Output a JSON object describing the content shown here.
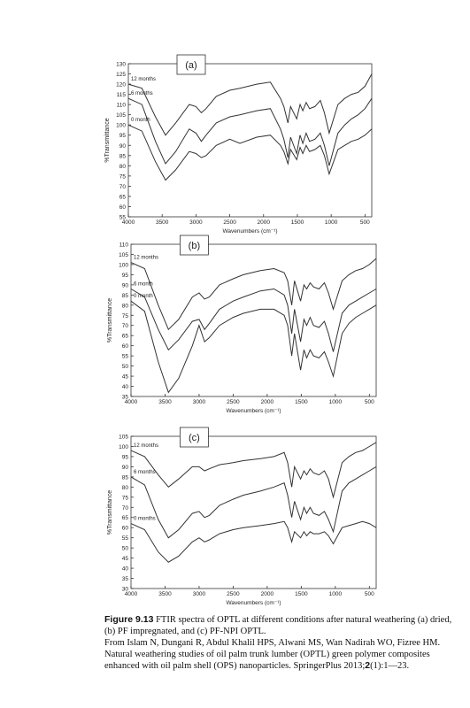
{
  "chart_data": [
    {
      "type": "line",
      "panel_label": "(a)",
      "ylabel": "%Transmittance",
      "xlabel": "Wavenumbers (cm⁻¹)",
      "xlim": [
        4000,
        400
      ],
      "xticks": [
        4000,
        3500,
        3000,
        2500,
        2000,
        1500,
        1000,
        500
      ],
      "ylim": [
        55,
        130
      ],
      "yticks": [
        55,
        60,
        65,
        70,
        75,
        80,
        85,
        90,
        95,
        100,
        105,
        110,
        115,
        120,
        125,
        130
      ],
      "x": [
        4000,
        3800,
        3600,
        3450,
        3300,
        3100,
        3000,
        2920,
        2850,
        2700,
        2500,
        2350,
        2100,
        1900,
        1750,
        1700,
        1640,
        1600,
        1510,
        1460,
        1420,
        1370,
        1320,
        1240,
        1160,
        1100,
        1030,
        900,
        800,
        700,
        600,
        500,
        400
      ],
      "series": [
        {
          "name": "12 months",
          "color": "#333333",
          "values": [
            120,
            118,
            104,
            95,
            101,
            110,
            109,
            106,
            108,
            114,
            117,
            118,
            120,
            121,
            113,
            109,
            101,
            109,
            103,
            110,
            107,
            111,
            108,
            109,
            112,
            106,
            96,
            110,
            113,
            115,
            116,
            119,
            125
          ]
        },
        {
          "name": "6 months",
          "color": "#333333",
          "values": [
            113,
            110,
            92,
            81,
            87,
            98,
            96,
            92,
            95,
            101,
            104,
            105,
            107,
            108,
            98,
            93,
            84,
            94,
            86,
            95,
            91,
            96,
            92,
            93,
            96,
            90,
            80,
            96,
            100,
            103,
            105,
            108,
            113
          ]
        },
        {
          "name": "0 month",
          "color": "#333333",
          "values": [
            100,
            97,
            82,
            73,
            78,
            87,
            86,
            84,
            85,
            90,
            93,
            91,
            94,
            95,
            90,
            87,
            81,
            88,
            83,
            89,
            86,
            90,
            87,
            88,
            90,
            85,
            76,
            88,
            90,
            92,
            93,
            95,
            98
          ]
        }
      ]
    },
    {
      "type": "line",
      "panel_label": "(b)",
      "ylabel": "%Transmittance",
      "xlabel": "Wavenumbers (cm⁻¹)",
      "xlim": [
        4000,
        400
      ],
      "xticks": [
        4000,
        3500,
        3000,
        2500,
        2000,
        1500,
        1000,
        500
      ],
      "ylim": [
        35,
        110
      ],
      "yticks": [
        35,
        40,
        45,
        50,
        55,
        60,
        65,
        70,
        75,
        80,
        85,
        90,
        95,
        100,
        105,
        110
      ],
      "x": [
        4000,
        3800,
        3600,
        3450,
        3300,
        3100,
        3000,
        2920,
        2850,
        2700,
        2500,
        2350,
        2100,
        1900,
        1750,
        1700,
        1640,
        1600,
        1510,
        1460,
        1420,
        1370,
        1320,
        1240,
        1160,
        1100,
        1030,
        900,
        800,
        700,
        600,
        500,
        400
      ],
      "series": [
        {
          "name": "12 months",
          "color": "#333333",
          "values": [
            101,
            98,
            80,
            68,
            73,
            84,
            86,
            83,
            84,
            90,
            93,
            95,
            97,
            98,
            96,
            92,
            80,
            92,
            82,
            90,
            88,
            91,
            89,
            88,
            91,
            86,
            78,
            92,
            95,
            97,
            98,
            100,
            103
          ]
        },
        {
          "name": "6 month",
          "color": "#333333",
          "values": [
            88,
            84,
            68,
            58,
            63,
            72,
            73,
            68,
            71,
            78,
            82,
            84,
            87,
            88,
            85,
            80,
            66,
            78,
            62,
            73,
            70,
            74,
            70,
            69,
            72,
            66,
            57,
            76,
            80,
            82,
            84,
            86,
            88
          ]
        },
        {
          "name": "0 month",
          "color": "#333333",
          "values": [
            82,
            77,
            52,
            37,
            44,
            60,
            70,
            62,
            64,
            70,
            74,
            76,
            78,
            78,
            75,
            70,
            55,
            66,
            48,
            58,
            54,
            58,
            55,
            54,
            57,
            52,
            45,
            66,
            71,
            74,
            76,
            78,
            80
          ]
        }
      ]
    },
    {
      "type": "line",
      "panel_label": "(c)",
      "ylabel": "%Transmittance",
      "xlabel": "Wavenumbers (cm⁻¹)",
      "xlim": [
        4000,
        400
      ],
      "xticks": [
        4000,
        3500,
        3000,
        2500,
        2000,
        1500,
        1000,
        500
      ],
      "ylim": [
        30,
        105
      ],
      "yticks": [
        30,
        35,
        40,
        45,
        50,
        55,
        60,
        65,
        70,
        75,
        80,
        85,
        90,
        95,
        100,
        105
      ],
      "x": [
        4000,
        3800,
        3600,
        3450,
        3300,
        3100,
        3000,
        2920,
        2850,
        2700,
        2500,
        2350,
        2100,
        1900,
        1750,
        1700,
        1640,
        1600,
        1510,
        1460,
        1420,
        1370,
        1320,
        1240,
        1160,
        1100,
        1030,
        900,
        800,
        700,
        600,
        500,
        400
      ],
      "series": [
        {
          "name": "12 months",
          "color": "#333333",
          "values": [
            98,
            95,
            86,
            80,
            84,
            90,
            90,
            88,
            89,
            91,
            92,
            93,
            94,
            95,
            97,
            92,
            80,
            90,
            84,
            88,
            86,
            89,
            87,
            86,
            88,
            84,
            75,
            92,
            95,
            97,
            98,
            100,
            102
          ]
        },
        {
          "name": "6 months",
          "color": "#333333",
          "values": [
            85,
            81,
            64,
            55,
            59,
            67,
            68,
            65,
            66,
            71,
            74,
            76,
            78,
            80,
            82,
            76,
            65,
            73,
            64,
            70,
            67,
            70,
            67,
            66,
            68,
            64,
            58,
            78,
            82,
            84,
            86,
            88,
            90
          ]
        },
        {
          "name": "0 months",
          "color": "#333333",
          "values": [
            62,
            59,
            48,
            43,
            46,
            53,
            55,
            53,
            54,
            57,
            59,
            60,
            61,
            62,
            63,
            60,
            53,
            58,
            55,
            58,
            56,
            58,
            57,
            57,
            58,
            56,
            52,
            60,
            61,
            62,
            63,
            62,
            60
          ]
        }
      ]
    }
  ],
  "caption": {
    "label": "Figure 9.13",
    "text": "FTIR spectra of OPTL at different conditions after natural weathering (a) dried, (b) PF impregnated, and (c) PF-NPI OPTL.",
    "source": "From Islam N, Dungani R, Abdul Khalil HPS, Alwani MS, Wan Nadirah WO, Fizree HM. Natural weathering studies of oil palm trunk lumber (OPTL) green polymer composites enhanced with oil palm shell (OPS) nanoparticles. SpringerPlus 2013;",
    "volume": "2",
    "pages": "(1):1—23."
  }
}
